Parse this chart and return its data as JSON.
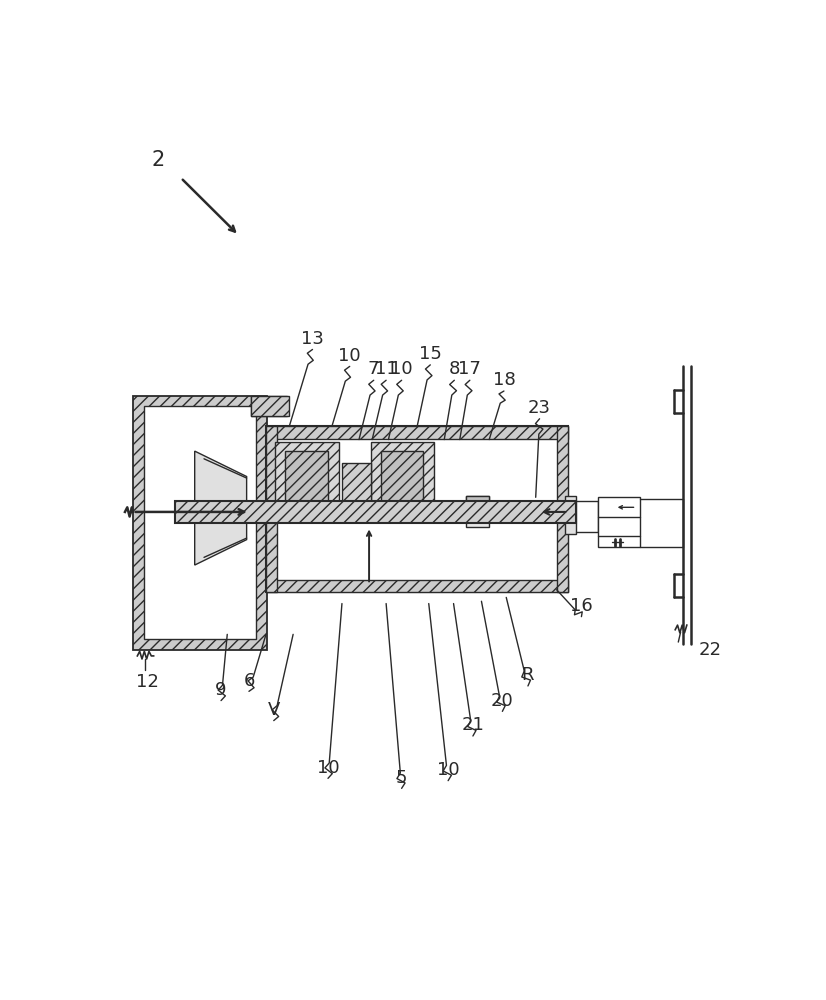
{
  "bg": "#ffffff",
  "lc": "#2a2a2a",
  "hfc": "#cccccc",
  "gfc": "#e8e8e8",
  "wfc": "#ffffff"
}
